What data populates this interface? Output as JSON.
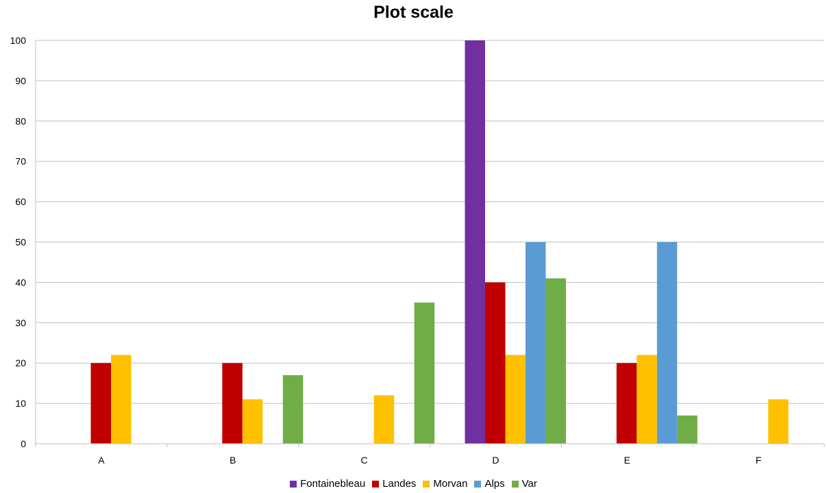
{
  "chart_data": {
    "type": "bar",
    "title": "Plot scale",
    "xlabel": "",
    "ylabel": "",
    "categories": [
      "A",
      "B",
      "C",
      "D",
      "E",
      "F"
    ],
    "ylim": [
      0,
      100
    ],
    "yticks": [
      0,
      10,
      20,
      30,
      40,
      50,
      60,
      70,
      80,
      90,
      100
    ],
    "grid": true,
    "legend_position": "bottom",
    "series": [
      {
        "name": "Fontainebleau",
        "color": "#7030A0",
        "values": [
          0,
          0,
          0,
          100,
          0,
          0
        ]
      },
      {
        "name": "Landes",
        "color": "#C00000",
        "values": [
          20,
          20,
          0,
          40,
          20,
          0
        ]
      },
      {
        "name": "Morvan",
        "color": "#FFC000",
        "values": [
          22,
          11,
          12,
          22,
          22,
          11
        ]
      },
      {
        "name": "Alps",
        "color": "#5B9BD5",
        "values": [
          0,
          0,
          0,
          50,
          50,
          0
        ]
      },
      {
        "name": "Var",
        "color": "#70AD47",
        "values": [
          0,
          17,
          35,
          41,
          7,
          0
        ]
      }
    ]
  }
}
